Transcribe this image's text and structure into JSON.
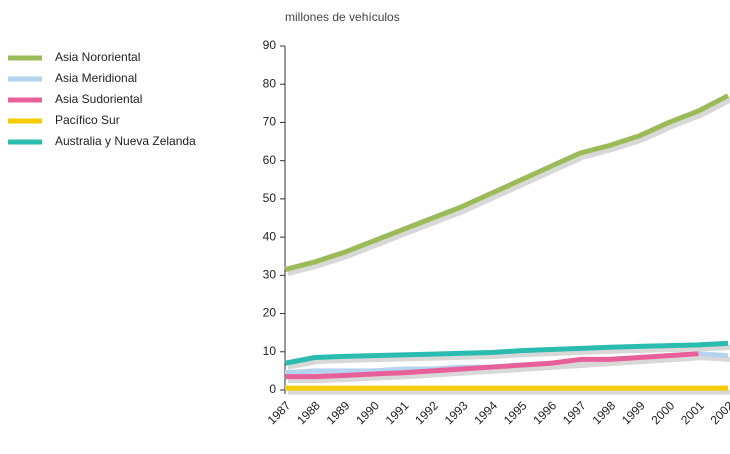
{
  "chart_data": {
    "type": "line",
    "title": "millones de vehículos",
    "categories": [
      "1987",
      "1988",
      "1989",
      "1990",
      "1991",
      "1992",
      "1993",
      "1994",
      "1995",
      "1996",
      "1997",
      "1998",
      "1999",
      "2000",
      "2001",
      "2002"
    ],
    "series": [
      {
        "name": "Asia Nororiental",
        "color": "#9bbb59",
        "values": [
          31.5,
          33.5,
          36,
          39,
          42,
          45,
          48,
          51.5,
          55,
          58.5,
          62,
          64,
          66.5,
          70,
          73,
          77
        ]
      },
      {
        "name": "Asia Meridional",
        "color": "#b4d3ee",
        "values": [
          4.5,
          5,
          5,
          5,
          5.5,
          5.5,
          6,
          6,
          6.5,
          7,
          7.5,
          8,
          8.5,
          9,
          9.5,
          9
        ]
      },
      {
        "name": "Asia Sudoriental",
        "color": "#e8609a",
        "values": [
          3.5,
          3.5,
          3.8,
          4.2,
          4.5,
          5,
          5.5,
          6,
          6.5,
          7,
          8,
          8,
          8.5,
          9,
          9.5,
          null
        ]
      },
      {
        "name": "Pacífico Sur",
        "color": "#f5cc00",
        "values": [
          0.5,
          0.5,
          0.5,
          0.5,
          0.5,
          0.5,
          0.5,
          0.5,
          0.5,
          0.5,
          0.5,
          0.5,
          0.5,
          0.5,
          0.5,
          0.5
        ]
      },
      {
        "name": "Australia y Nueva Zelanda",
        "color": "#2bbcb0",
        "values": [
          7,
          8.5,
          8.8,
          9,
          9.2,
          9.4,
          9.6,
          9.8,
          10.3,
          10.6,
          10.9,
          11.2,
          11.4,
          11.6,
          11.8,
          12.2
        ]
      }
    ],
    "ylim": [
      0,
      90
    ],
    "yticks": [
      0,
      10,
      20,
      30,
      40,
      50,
      60,
      70,
      80,
      90
    ]
  }
}
